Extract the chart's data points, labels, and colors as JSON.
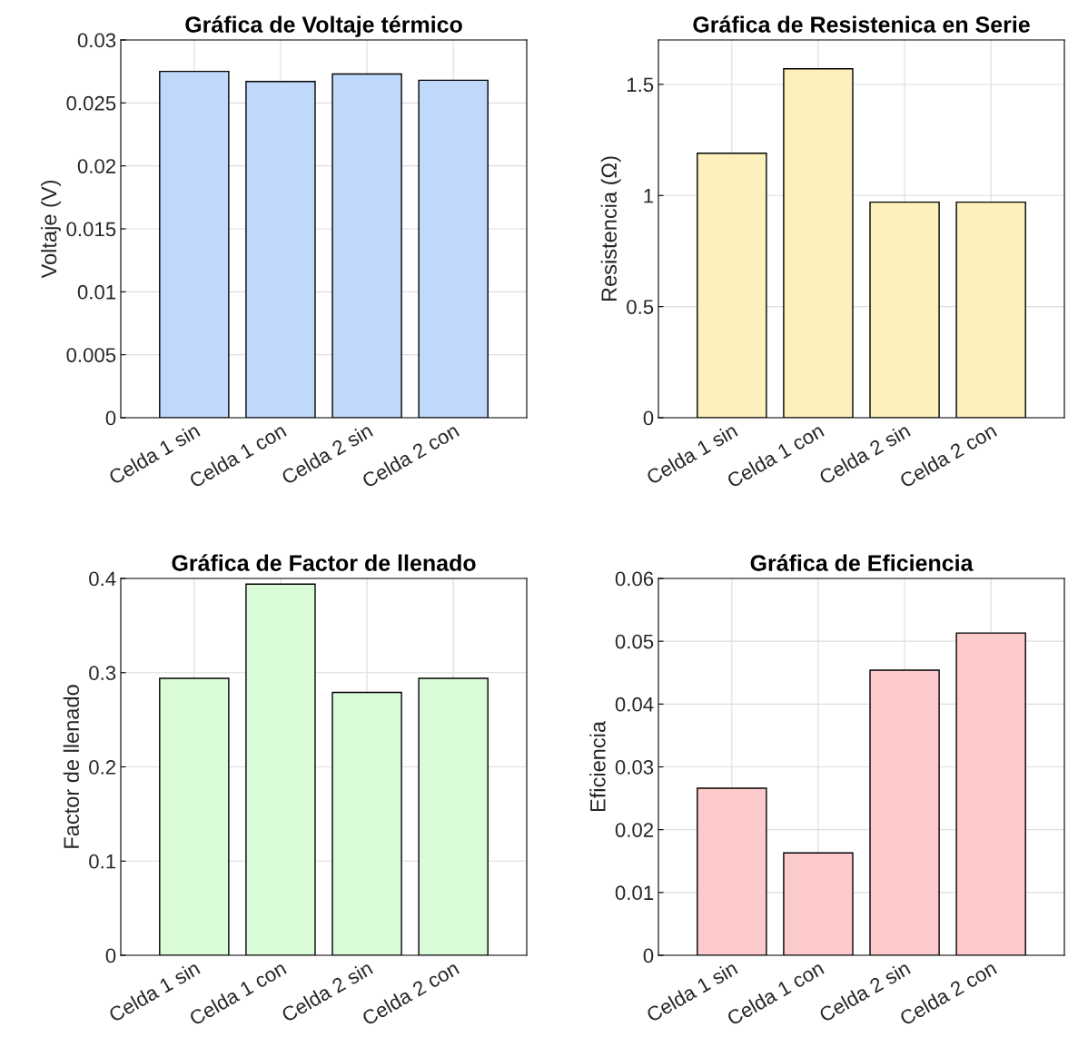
{
  "chart_data": [
    {
      "type": "bar",
      "title": "Gráfica de Voltaje térmico",
      "ylabel": "Voltaje (V)",
      "categories": [
        "Celda 1 sin",
        "Celda 1 con",
        "Celda 2 sin",
        "Celda 2 con"
      ],
      "values": [
        0.0275,
        0.0267,
        0.0273,
        0.0268
      ],
      "color": "#c0d9fb",
      "ylim": [
        0,
        0.03
      ],
      "yticks": [
        0,
        0.005,
        0.01,
        0.015,
        0.02,
        0.025,
        0.03
      ],
      "grid": true
    },
    {
      "type": "bar",
      "title": "Gráfica de Resistenica en Serie",
      "ylabel": "Resistencia (Ω)",
      "categories": [
        "Celda 1 sin",
        "Celda 1 con",
        "Celda 2 sin",
        "Celda 2 con"
      ],
      "values": [
        1.19,
        1.57,
        0.97,
        0.97
      ],
      "color": "#fdf0bd",
      "ylim": [
        0,
        1.7
      ],
      "yticks": [
        0,
        0.5,
        1,
        1.5
      ],
      "grid": true
    },
    {
      "type": "bar",
      "title": "Gráfica de Factor de llenado",
      "ylabel": "Factor de llenado",
      "categories": [
        "Celda 1 sin",
        "Celda 1 con",
        "Celda 2 sin",
        "Celda 2 con"
      ],
      "values": [
        0.294,
        0.394,
        0.279,
        0.294
      ],
      "color": "#d9fbd8",
      "ylim": [
        0,
        0.4
      ],
      "yticks": [
        0,
        0.1,
        0.2,
        0.3,
        0.4
      ],
      "grid": true
    },
    {
      "type": "bar",
      "title": "Gráfica de Eficiencia",
      "ylabel": "Eficiencia",
      "categories": [
        "Celda 1 sin",
        "Celda 1 con",
        "Celda 2 sin",
        "Celda 2 con"
      ],
      "values": [
        0.0266,
        0.0163,
        0.0454,
        0.0513
      ],
      "color": "#fdcbcb",
      "ylim": [
        0,
        0.06
      ],
      "yticks": [
        0,
        0.01,
        0.02,
        0.03,
        0.04,
        0.05,
        0.06
      ],
      "grid": true
    }
  ]
}
